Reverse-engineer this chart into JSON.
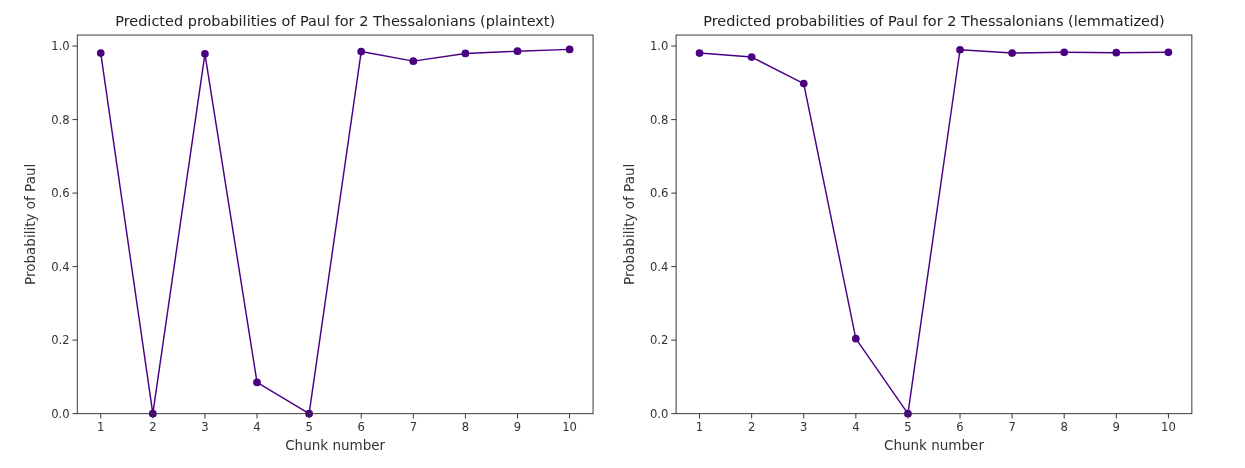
{
  "chart_data": [
    {
      "type": "line",
      "title": "Predicted probabilities of Paul for 2 Thessalonians (plaintext)",
      "xlabel": "Chunk number",
      "ylabel": "Probability of Paul",
      "x": [
        1,
        2,
        3,
        4,
        5,
        6,
        7,
        8,
        9,
        10
      ],
      "xlim": [
        0.55,
        10.45
      ],
      "xticks": [
        1,
        2,
        3,
        4,
        5,
        6,
        7,
        8,
        9,
        10
      ],
      "ylim": [
        0,
        1.03
      ],
      "yticks": [
        {
          "value": 0,
          "label": "0.0"
        },
        {
          "value": 0.2,
          "label": "0.2"
        },
        {
          "value": 0.4,
          "label": "0.4"
        },
        {
          "value": 0.6,
          "label": "0.6"
        },
        {
          "value": 0.8,
          "label": "0.8"
        },
        {
          "value": 1,
          "label": "1.0"
        }
      ],
      "marker": "circle",
      "series": [
        {
          "color": "#4b0082",
          "values": [
            0.981,
            0,
            0.979,
            0.085,
            0,
            0.985,
            0.959,
            0.98,
            0.986,
            0.991
          ]
        }
      ]
    },
    {
      "type": "line",
      "title": "Predicted probabilities of Paul for 2 Thessalonians (lemmatized)",
      "xlabel": "Chunk number",
      "ylabel": "Probability of Paul",
      "x": [
        1,
        2,
        3,
        4,
        5,
        6,
        7,
        8,
        9,
        10
      ],
      "xlim": [
        0.55,
        10.45
      ],
      "xticks": [
        1,
        2,
        3,
        4,
        5,
        6,
        7,
        8,
        9,
        10
      ],
      "ylim": [
        0,
        1.03
      ],
      "yticks": [
        {
          "value": 0,
          "label": "0.0"
        },
        {
          "value": 0.2,
          "label": "0.2"
        },
        {
          "value": 0.4,
          "label": "0.4"
        },
        {
          "value": 0.6,
          "label": "0.6"
        },
        {
          "value": 0.8,
          "label": "0.8"
        },
        {
          "value": 1,
          "label": "1.0"
        }
      ],
      "marker": "circle",
      "series": [
        {
          "color": "#4b0082",
          "values": [
            0.981,
            0.97,
            0.898,
            0.204,
            0,
            0.99,
            0.981,
            0.983,
            0.982,
            0.983
          ]
        }
      ]
    }
  ]
}
